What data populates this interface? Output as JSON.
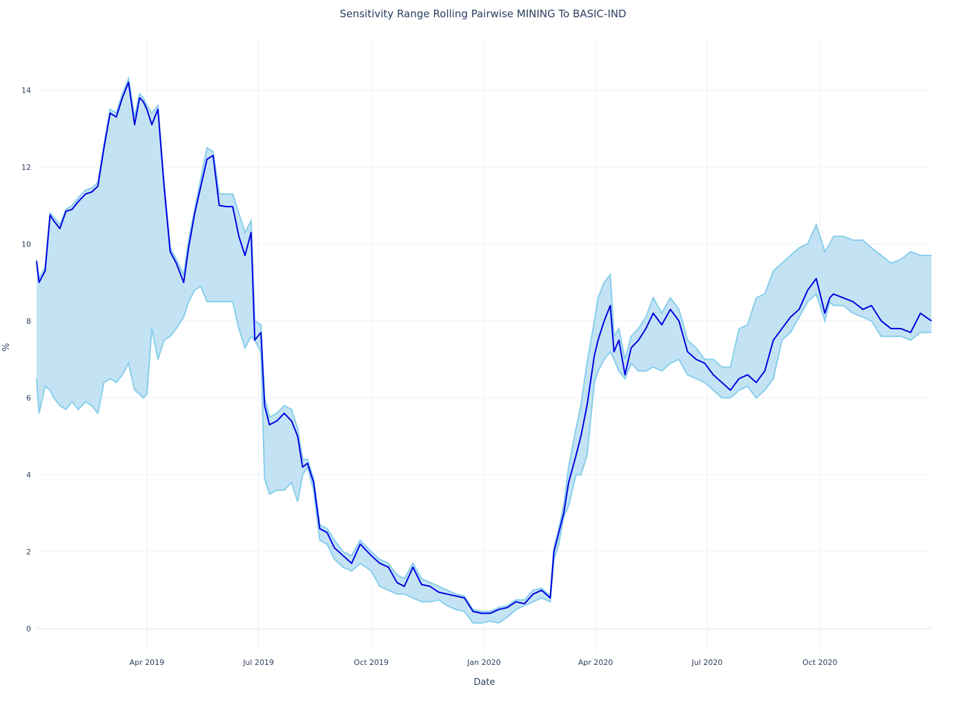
{
  "chart_data": {
    "type": "area",
    "title": "Sensitivity Range Rolling Pairwise MINING To BASIC-IND",
    "xlabel": "Date",
    "ylabel": "%",
    "xlim": [
      "2019-01-01",
      "2020-12-31"
    ],
    "ylim": [
      -0.6,
      15.3
    ],
    "x_ticks": [
      {
        "date": "2019-04-01",
        "label": "Apr 2019"
      },
      {
        "date": "2019-07-01",
        "label": "Jul 2019"
      },
      {
        "date": "2019-10-01",
        "label": "Oct 2019"
      },
      {
        "date": "2020-01-01",
        "label": "Jan 2020"
      },
      {
        "date": "2020-04-01",
        "label": "Apr 2020"
      },
      {
        "date": "2020-07-01",
        "label": "Jul 2020"
      },
      {
        "date": "2020-10-01",
        "label": "Oct 2020"
      }
    ],
    "y_ticks": [
      0,
      2,
      4,
      6,
      8,
      10,
      12,
      14
    ],
    "grid": true,
    "legend": "none",
    "colors": {
      "band_fill": "#c3e3f4",
      "band_line": "#87ceeb",
      "main_line": "#0000e0"
    },
    "series": [
      {
        "role": "main",
        "x": [
          "2019-01-01",
          "2019-01-03",
          "2019-01-08",
          "2019-01-12",
          "2019-01-15",
          "2019-01-20",
          "2019-01-25",
          "2019-01-30",
          "2019-02-04",
          "2019-02-10",
          "2019-02-15",
          "2019-02-20",
          "2019-02-25",
          "2019-03-02",
          "2019-03-07",
          "2019-03-12",
          "2019-03-17",
          "2019-03-22",
          "2019-03-26",
          "2019-03-29",
          "2019-04-01",
          "2019-04-05",
          "2019-04-10",
          "2019-04-15",
          "2019-04-20",
          "2019-04-25",
          "2019-05-01",
          "2019-05-05",
          "2019-05-10",
          "2019-05-15",
          "2019-05-20",
          "2019-05-25",
          "2019-05-30",
          "2019-06-05",
          "2019-06-10",
          "2019-06-15",
          "2019-06-20",
          "2019-06-25",
          "2019-06-28",
          "2019-07-03",
          "2019-07-06",
          "2019-07-10",
          "2019-07-16",
          "2019-07-22",
          "2019-07-28",
          "2019-08-02",
          "2019-08-06",
          "2019-08-10",
          "2019-08-15",
          "2019-08-20",
          "2019-08-26",
          "2019-09-01",
          "2019-09-08",
          "2019-09-15",
          "2019-09-22",
          "2019-10-01",
          "2019-10-08",
          "2019-10-15",
          "2019-10-22",
          "2019-10-28",
          "2019-11-04",
          "2019-11-11",
          "2019-11-18",
          "2019-11-25",
          "2019-12-02",
          "2019-12-09",
          "2019-12-16",
          "2019-12-23",
          "2019-12-30",
          "2020-01-06",
          "2020-01-13",
          "2020-01-20",
          "2020-01-27",
          "2020-02-03",
          "2020-02-10",
          "2020-02-17",
          "2020-02-24",
          "2020-02-27",
          "2020-03-02",
          "2020-03-06",
          "2020-03-10",
          "2020-03-16",
          "2020-03-20",
          "2020-03-25",
          "2020-03-31",
          "2020-04-03",
          "2020-04-08",
          "2020-04-13",
          "2020-04-16",
          "2020-04-20",
          "2020-04-25",
          "2020-04-30",
          "2020-05-06",
          "2020-05-12",
          "2020-05-18",
          "2020-05-25",
          "2020-06-01",
          "2020-06-08",
          "2020-06-15",
          "2020-06-22",
          "2020-06-29",
          "2020-07-06",
          "2020-07-13",
          "2020-07-20",
          "2020-07-27",
          "2020-08-03",
          "2020-08-10",
          "2020-08-17",
          "2020-08-24",
          "2020-08-31",
          "2020-09-07",
          "2020-09-14",
          "2020-09-21",
          "2020-09-28",
          "2020-10-05",
          "2020-10-09",
          "2020-10-12",
          "2020-10-20",
          "2020-10-28",
          "2020-11-05",
          "2020-11-12",
          "2020-11-20",
          "2020-11-28",
          "2020-12-06",
          "2020-12-14",
          "2020-12-22",
          "2020-12-31"
        ],
        "values": [
          9.55,
          9.0,
          9.3,
          10.75,
          10.6,
          10.4,
          10.85,
          10.9,
          11.1,
          11.3,
          11.35,
          11.5,
          12.5,
          13.4,
          13.3,
          13.8,
          14.2,
          13.1,
          13.8,
          13.7,
          13.5,
          13.1,
          13.5,
          11.5,
          9.8,
          9.5,
          9.0,
          9.9,
          10.8,
          11.5,
          12.2,
          12.3,
          11.0,
          10.97,
          10.97,
          10.2,
          9.7,
          10.3,
          7.5,
          7.7,
          5.8,
          5.3,
          5.4,
          5.6,
          5.4,
          5.0,
          4.2,
          4.3,
          3.8,
          2.6,
          2.5,
          2.1,
          1.9,
          1.7,
          2.2,
          1.9,
          1.7,
          1.6,
          1.2,
          1.1,
          1.6,
          1.15,
          1.1,
          0.95,
          0.9,
          0.85,
          0.8,
          0.45,
          0.4,
          0.4,
          0.5,
          0.55,
          0.7,
          0.65,
          0.9,
          1.0,
          0.8,
          2.0,
          2.5,
          3.0,
          3.8,
          4.5,
          5.0,
          5.8,
          7.1,
          7.5,
          8.0,
          8.4,
          7.2,
          7.5,
          6.6,
          7.3,
          7.5,
          7.8,
          8.2,
          7.9,
          8.3,
          8.0,
          7.2,
          7.0,
          6.9,
          6.6,
          6.4,
          6.2,
          6.5,
          6.6,
          6.4,
          6.7,
          7.5,
          7.8,
          8.1,
          8.3,
          8.8,
          9.1,
          8.2,
          8.6,
          8.7,
          8.6,
          8.5,
          8.3,
          8.4,
          8.0,
          7.8,
          7.8,
          7.7,
          8.2,
          8.0
        ]
      },
      {
        "role": "band_upper",
        "x": [
          "2019-01-01",
          "2019-01-03",
          "2019-01-08",
          "2019-01-12",
          "2019-01-15",
          "2019-01-20",
          "2019-01-25",
          "2019-01-30",
          "2019-02-04",
          "2019-02-10",
          "2019-02-15",
          "2019-02-20",
          "2019-02-25",
          "2019-03-02",
          "2019-03-07",
          "2019-03-12",
          "2019-03-17",
          "2019-03-22",
          "2019-03-26",
          "2019-03-29",
          "2019-04-01",
          "2019-04-05",
          "2019-04-10",
          "2019-04-15",
          "2019-04-20",
          "2019-04-25",
          "2019-05-01",
          "2019-05-05",
          "2019-05-10",
          "2019-05-15",
          "2019-05-20",
          "2019-05-25",
          "2019-05-30",
          "2019-06-05",
          "2019-06-10",
          "2019-06-15",
          "2019-06-20",
          "2019-06-25",
          "2019-06-28",
          "2019-07-03",
          "2019-07-06",
          "2019-07-10",
          "2019-07-16",
          "2019-07-22",
          "2019-07-28",
          "2019-08-02",
          "2019-08-06",
          "2019-08-10",
          "2019-08-15",
          "2019-08-20",
          "2019-08-26",
          "2019-09-01",
          "2019-09-08",
          "2019-09-15",
          "2019-09-22",
          "2019-10-01",
          "2019-10-08",
          "2019-10-15",
          "2019-10-22",
          "2019-10-28",
          "2019-11-04",
          "2019-11-11",
          "2019-11-18",
          "2019-11-25",
          "2019-12-02",
          "2019-12-09",
          "2019-12-16",
          "2019-12-23",
          "2019-12-30",
          "2020-01-06",
          "2020-01-13",
          "2020-01-20",
          "2020-01-27",
          "2020-02-03",
          "2020-02-10",
          "2020-02-17",
          "2020-02-24",
          "2020-02-27",
          "2020-03-02",
          "2020-03-06",
          "2020-03-10",
          "2020-03-16",
          "2020-03-20",
          "2020-03-25",
          "2020-03-31",
          "2020-04-03",
          "2020-04-08",
          "2020-04-13",
          "2020-04-16",
          "2020-04-20",
          "2020-04-25",
          "2020-04-30",
          "2020-05-06",
          "2020-05-12",
          "2020-05-18",
          "2020-05-25",
          "2020-06-01",
          "2020-06-08",
          "2020-06-15",
          "2020-06-22",
          "2020-06-29",
          "2020-07-06",
          "2020-07-13",
          "2020-07-20",
          "2020-07-27",
          "2020-08-03",
          "2020-08-10",
          "2020-08-17",
          "2020-08-24",
          "2020-08-31",
          "2020-09-07",
          "2020-09-14",
          "2020-09-21",
          "2020-09-28",
          "2020-10-05",
          "2020-10-09",
          "2020-10-12",
          "2020-10-20",
          "2020-10-28",
          "2020-11-05",
          "2020-11-12",
          "2020-11-20",
          "2020-11-28",
          "2020-12-06",
          "2020-12-14",
          "2020-12-22",
          "2020-12-31"
        ],
        "values": [
          9.6,
          9.1,
          9.4,
          10.8,
          10.7,
          10.5,
          10.9,
          11.0,
          11.2,
          11.4,
          11.45,
          11.6,
          12.6,
          13.5,
          13.4,
          13.9,
          14.3,
          13.3,
          13.9,
          13.8,
          13.6,
          13.4,
          13.6,
          11.6,
          9.9,
          9.6,
          9.2,
          10.1,
          10.9,
          11.7,
          12.5,
          12.4,
          11.3,
          11.3,
          11.3,
          10.8,
          10.3,
          10.6,
          8.0,
          7.9,
          6.0,
          5.5,
          5.6,
          5.8,
          5.7,
          5.2,
          4.4,
          4.4,
          3.9,
          2.7,
          2.6,
          2.3,
          2.0,
          1.9,
          2.3,
          2.0,
          1.8,
          1.7,
          1.4,
          1.3,
          1.7,
          1.3,
          1.2,
          1.1,
          1.0,
          0.9,
          0.85,
          0.5,
          0.45,
          0.45,
          0.55,
          0.6,
          0.75,
          0.75,
          1.0,
          1.05,
          0.85,
          2.1,
          2.6,
          3.2,
          4.2,
          5.2,
          5.8,
          6.9,
          8.0,
          8.6,
          9.0,
          9.2,
          7.6,
          7.8,
          7.0,
          7.6,
          7.8,
          8.1,
          8.6,
          8.2,
          8.6,
          8.3,
          7.5,
          7.3,
          7.0,
          7.0,
          6.8,
          6.8,
          7.8,
          7.9,
          8.6,
          8.7,
          9.3,
          9.5,
          9.7,
          9.9,
          10.0,
          10.5,
          9.8,
          10.0,
          10.2,
          10.2,
          10.1,
          10.1,
          9.9,
          9.7,
          9.5,
          9.6,
          9.8,
          9.7,
          9.7
        ]
      },
      {
        "role": "band_lower",
        "x": [
          "2019-01-01",
          "2019-01-03",
          "2019-01-08",
          "2019-01-12",
          "2019-01-15",
          "2019-01-20",
          "2019-01-25",
          "2019-01-30",
          "2019-02-04",
          "2019-02-10",
          "2019-02-15",
          "2019-02-20",
          "2019-02-25",
          "2019-03-02",
          "2019-03-07",
          "2019-03-12",
          "2019-03-17",
          "2019-03-22",
          "2019-03-26",
          "2019-03-29",
          "2019-04-01",
          "2019-04-05",
          "2019-04-10",
          "2019-04-15",
          "2019-04-20",
          "2019-04-25",
          "2019-05-01",
          "2019-05-05",
          "2019-05-10",
          "2019-05-15",
          "2019-05-20",
          "2019-05-25",
          "2019-05-30",
          "2019-06-05",
          "2019-06-10",
          "2019-06-15",
          "2019-06-20",
          "2019-06-25",
          "2019-06-28",
          "2019-07-03",
          "2019-07-06",
          "2019-07-10",
          "2019-07-16",
          "2019-07-22",
          "2019-07-28",
          "2019-08-02",
          "2019-08-06",
          "2019-08-10",
          "2019-08-15",
          "2019-08-20",
          "2019-08-26",
          "2019-09-01",
          "2019-09-08",
          "2019-09-15",
          "2019-09-22",
          "2019-10-01",
          "2019-10-08",
          "2019-10-15",
          "2019-10-22",
          "2019-10-28",
          "2019-11-04",
          "2019-11-11",
          "2019-11-18",
          "2019-11-25",
          "2019-12-02",
          "2019-12-09",
          "2019-12-16",
          "2019-12-23",
          "2019-12-30",
          "2020-01-06",
          "2020-01-13",
          "2020-01-20",
          "2020-01-27",
          "2020-02-03",
          "2020-02-10",
          "2020-02-17",
          "2020-02-24",
          "2020-02-27",
          "2020-03-02",
          "2020-03-06",
          "2020-03-10",
          "2020-03-16",
          "2020-03-20",
          "2020-03-25",
          "2020-03-31",
          "2020-04-03",
          "2020-04-08",
          "2020-04-13",
          "2020-04-16",
          "2020-04-20",
          "2020-04-25",
          "2020-04-30",
          "2020-05-06",
          "2020-05-12",
          "2020-05-18",
          "2020-05-25",
          "2020-06-01",
          "2020-06-08",
          "2020-06-15",
          "2020-06-22",
          "2020-06-29",
          "2020-07-06",
          "2020-07-13",
          "2020-07-20",
          "2020-07-27",
          "2020-08-03",
          "2020-08-10",
          "2020-08-17",
          "2020-08-24",
          "2020-08-31",
          "2020-09-07",
          "2020-09-14",
          "2020-09-21",
          "2020-09-28",
          "2020-10-05",
          "2020-10-09",
          "2020-10-12",
          "2020-10-20",
          "2020-10-28",
          "2020-11-05",
          "2020-11-12",
          "2020-11-20",
          "2020-11-28",
          "2020-12-06",
          "2020-12-14",
          "2020-12-22",
          "2020-12-31"
        ],
        "values": [
          6.5,
          5.6,
          6.3,
          6.2,
          6.0,
          5.8,
          5.7,
          5.9,
          5.7,
          5.9,
          5.8,
          5.6,
          6.4,
          6.5,
          6.4,
          6.6,
          6.9,
          6.2,
          6.1,
          6.0,
          6.1,
          7.8,
          7.0,
          7.5,
          7.6,
          7.8,
          8.1,
          8.5,
          8.8,
          8.9,
          8.5,
          8.5,
          8.5,
          8.5,
          8.5,
          7.8,
          7.3,
          7.6,
          7.5,
          7.2,
          3.9,
          3.5,
          3.6,
          3.6,
          3.8,
          3.3,
          4.0,
          4.2,
          3.6,
          2.3,
          2.2,
          1.8,
          1.6,
          1.5,
          1.7,
          1.5,
          1.1,
          1.0,
          0.9,
          0.9,
          0.8,
          0.7,
          0.7,
          0.75,
          0.6,
          0.5,
          0.45,
          0.15,
          0.15,
          0.2,
          0.15,
          0.3,
          0.5,
          0.6,
          0.7,
          0.8,
          0.7,
          1.8,
          2.2,
          2.9,
          3.2,
          4.0,
          4.0,
          4.5,
          6.4,
          6.7,
          7.0,
          7.2,
          7.0,
          6.7,
          6.5,
          6.9,
          6.7,
          6.7,
          6.8,
          6.7,
          6.9,
          7.0,
          6.6,
          6.5,
          6.4,
          6.2,
          6.0,
          6.0,
          6.2,
          6.3,
          6.0,
          6.2,
          6.5,
          7.5,
          7.7,
          8.1,
          8.5,
          8.7,
          8.0,
          8.5,
          8.4,
          8.4,
          8.2,
          8.1,
          8.0,
          7.6,
          7.6,
          7.6,
          7.5,
          7.7,
          7.7
        ]
      }
    ]
  }
}
